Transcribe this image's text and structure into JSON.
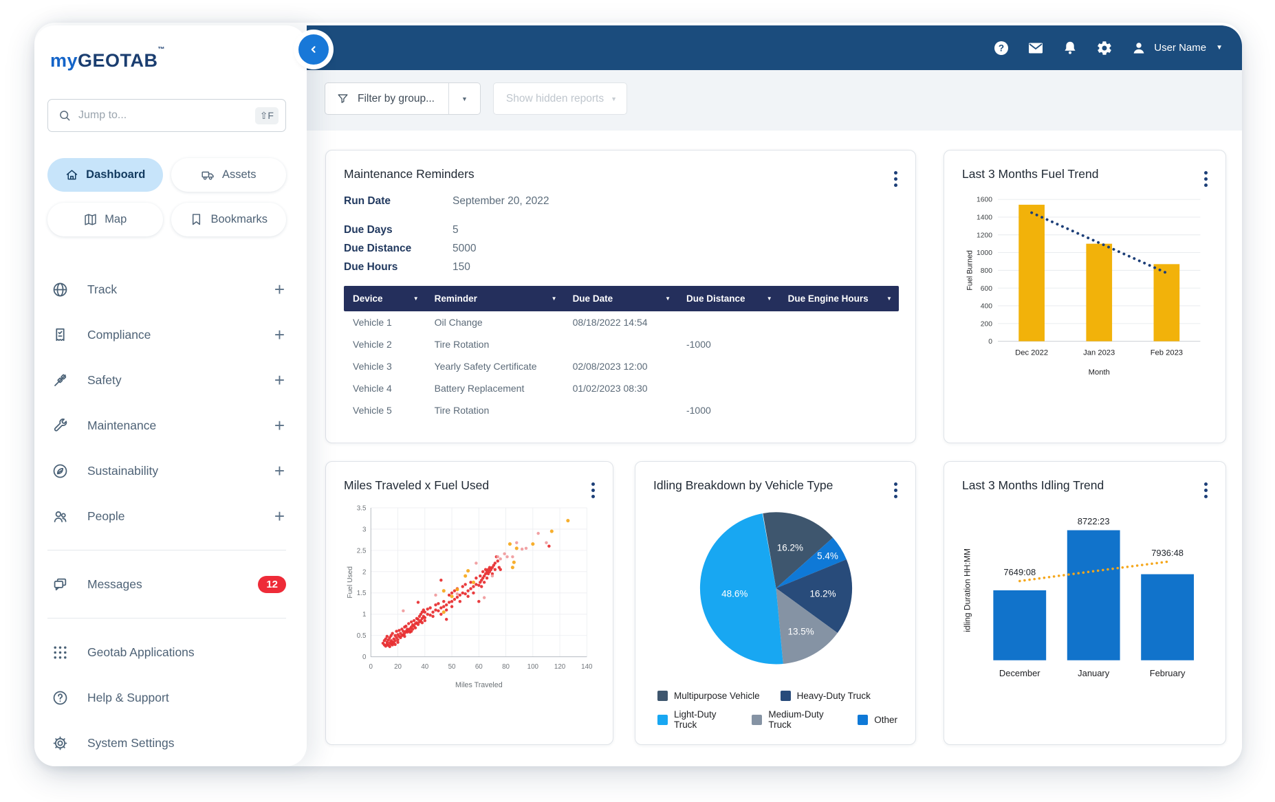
{
  "sidebar": {
    "logo": {
      "brand_prefix": "my",
      "brand_suffix": "GEOTAB",
      "tm": "™"
    },
    "search": {
      "placeholder": "Jump to...",
      "shortcut": "⇧F"
    },
    "quick_nav": [
      {
        "label": "Dashboard",
        "icon": "home-icon",
        "active": true
      },
      {
        "label": "Assets",
        "icon": "truck-icon",
        "active": false
      },
      {
        "label": "Map",
        "icon": "map-icon",
        "active": false
      },
      {
        "label": "Bookmarks",
        "icon": "bookmark-icon",
        "active": false
      }
    ],
    "menu": [
      {
        "label": "Track",
        "icon": "globe-icon"
      },
      {
        "label": "Compliance",
        "icon": "checklist-icon"
      },
      {
        "label": "Safety",
        "icon": "seatbelt-icon"
      },
      {
        "label": "Maintenance",
        "icon": "wrench-icon"
      },
      {
        "label": "Sustainability",
        "icon": "leaf-icon"
      },
      {
        "label": "People",
        "icon": "people-icon"
      }
    ],
    "messages": {
      "label": "Messages",
      "icon": "chat-icon",
      "badge": "12"
    },
    "footer": [
      {
        "label": "Geotab Applications",
        "icon": "apps-grid-icon"
      },
      {
        "label": "Help & Support",
        "icon": "help-circle-icon"
      },
      {
        "label": "System Settings",
        "icon": "gear-outline-icon"
      }
    ]
  },
  "topbar": {
    "user_name": "User Name"
  },
  "filters": {
    "group_label": "Filter by group...",
    "hidden_label": "Show hidden reports"
  },
  "maintenance": {
    "title": "Maintenance Reminders",
    "run_date_label": "Run Date",
    "run_date_value": "September 20, 2022",
    "stats": [
      {
        "label": "Due Days",
        "value": "5"
      },
      {
        "label": "Due Distance",
        "value": "5000"
      },
      {
        "label": "Due Hours",
        "value": "150"
      }
    ],
    "table": {
      "columns": [
        "Device",
        "Reminder",
        "Due Date",
        "Due Distance",
        "Due Engine Hours"
      ],
      "rows": [
        [
          "Vehicle 1",
          "Oil Change",
          "08/18/2022 14:54",
          "",
          ""
        ],
        [
          "Vehicle 2",
          "Tire Rotation",
          "",
          "-1000",
          ""
        ],
        [
          "Vehicle 3",
          "Yearly Safety Certificate",
          "02/08/2023 12:00",
          "",
          ""
        ],
        [
          "Vehicle 4",
          "Battery Replacement",
          "01/02/2023 08:30",
          "",
          ""
        ],
        [
          "Vehicle 5",
          "Tire Rotation",
          "",
          "-1000",
          ""
        ]
      ]
    }
  },
  "chart_data": [
    {
      "id": "fuel-trend",
      "type": "bar",
      "title": "Last 3 Months Fuel Trend",
      "categories": [
        "Dec 2022",
        "Jan 2023",
        "Feb 2023"
      ],
      "values": [
        1540,
        1100,
        870
      ],
      "trendline": [
        1450,
        1110,
        770
      ],
      "xlabel": "Month",
      "ylabel": "Fuel Burned",
      "ylim": [
        0,
        1600
      ],
      "yticks": [
        0,
        200,
        400,
        600,
        800,
        1000,
        1200,
        1400,
        1600
      ],
      "grid": true,
      "bar_color": "#f2b20a",
      "trend_color": "#1d3f78"
    },
    {
      "id": "miles-fuel",
      "type": "scatter",
      "title": "Miles Traveled x Fuel Used",
      "xlabel": "Miles Traveled",
      "ylabel": "Fuel Used",
      "xlim": [
        0,
        140
      ],
      "ylim": [
        0,
        3.5
      ],
      "xticks": [
        0,
        20,
        40,
        50,
        60,
        80,
        100,
        120,
        140
      ],
      "yticks": [
        0,
        0.5,
        1,
        1.5,
        2,
        2.5,
        3,
        3.5
      ],
      "grid": true,
      "series": [
        {
          "name": "primary",
          "color": "#e72b2e",
          "point_radius": 2.6,
          "points": [
            [
              9,
              0.32
            ],
            [
              10,
              0.28
            ],
            [
              10,
              0.38
            ],
            [
              11,
              0.25
            ],
            [
              11,
              0.42
            ],
            [
              12,
              0.3
            ],
            [
              12,
              0.35
            ],
            [
              12,
              0.48
            ],
            [
              13,
              0.27
            ],
            [
              13,
              0.4
            ],
            [
              14,
              0.33
            ],
            [
              14,
              0.45
            ],
            [
              14,
              0.24
            ],
            [
              15,
              0.3
            ],
            [
              15,
              0.5
            ],
            [
              15,
              0.38
            ],
            [
              16,
              0.35
            ],
            [
              16,
              0.28
            ],
            [
              16,
              0.55
            ],
            [
              17,
              0.42
            ],
            [
              17,
              0.33
            ],
            [
              18,
              0.38
            ],
            [
              18,
              0.5
            ],
            [
              18,
              0.29
            ],
            [
              19,
              0.45
            ],
            [
              19,
              0.6
            ],
            [
              20,
              0.4
            ],
            [
              20,
              0.52
            ],
            [
              20,
              0.34
            ],
            [
              21,
              0.48
            ],
            [
              21,
              0.62
            ],
            [
              22,
              0.45
            ],
            [
              22,
              0.55
            ],
            [
              23,
              0.5
            ],
            [
              23,
              0.65
            ],
            [
              24,
              0.52
            ],
            [
              24,
              0.6
            ],
            [
              25,
              0.55
            ],
            [
              25,
              0.7
            ],
            [
              25,
              0.48
            ],
            [
              26,
              0.6
            ],
            [
              26,
              0.72
            ],
            [
              27,
              0.58
            ],
            [
              27,
              0.65
            ],
            [
              28,
              0.62
            ],
            [
              28,
              0.78
            ],
            [
              29,
              0.66
            ],
            [
              29,
              0.58
            ],
            [
              30,
              0.7
            ],
            [
              30,
              0.82
            ],
            [
              30,
              0.6
            ],
            [
              31,
              0.75
            ],
            [
              31,
              0.65
            ],
            [
              32,
              0.72
            ],
            [
              32,
              0.85
            ],
            [
              33,
              0.78
            ],
            [
              33,
              0.68
            ],
            [
              34,
              0.8
            ],
            [
              34,
              0.9
            ],
            [
              35,
              0.76
            ],
            [
              35,
              0.88
            ],
            [
              35,
              1.28
            ],
            [
              36,
              0.82
            ],
            [
              36,
              0.95
            ],
            [
              37,
              0.85
            ],
            [
              37,
              1.0
            ],
            [
              38,
              0.9
            ],
            [
              38,
              1.05
            ],
            [
              38,
              0.8
            ],
            [
              39,
              0.95
            ],
            [
              39,
              1.1
            ],
            [
              40,
              0.92
            ],
            [
              40,
              1.05
            ],
            [
              40,
              0.85
            ],
            [
              41,
              1.0
            ],
            [
              41,
              1.12
            ],
            [
              42,
              0.98
            ],
            [
              42,
              1.15
            ],
            [
              43,
              1.05
            ],
            [
              43,
              0.95
            ],
            [
              44,
              1.1
            ],
            [
              44,
              1.22
            ],
            [
              45,
              1.08
            ],
            [
              45,
              1.25
            ],
            [
              46,
              1.15
            ],
            [
              46,
              1.0
            ],
            [
              46,
              1.8
            ],
            [
              47,
              1.18
            ],
            [
              47,
              1.3
            ],
            [
              48,
              1.22
            ],
            [
              48,
              1.1
            ],
            [
              48,
              0.88
            ],
            [
              49,
              1.28
            ],
            [
              49,
              1.45
            ],
            [
              50,
              1.3
            ],
            [
              50,
              1.5
            ],
            [
              50,
              1.18
            ],
            [
              51,
              1.35
            ],
            [
              51,
              1.55
            ],
            [
              52,
              1.4
            ],
            [
              52,
              1.6
            ],
            [
              53,
              1.45
            ],
            [
              53,
              1.3
            ],
            [
              54,
              1.5
            ],
            [
              54,
              1.65
            ],
            [
              55,
              1.48
            ],
            [
              55,
              1.7
            ],
            [
              56,
              1.55
            ],
            [
              56,
              1.42
            ],
            [
              57,
              1.6
            ],
            [
              57,
              1.75
            ],
            [
              58,
              1.65
            ],
            [
              58,
              1.5
            ],
            [
              59,
              1.7
            ],
            [
              59,
              1.85
            ],
            [
              60,
              1.68
            ],
            [
              60,
              1.3
            ],
            [
              61,
              1.75
            ],
            [
              61,
              1.9
            ],
            [
              62,
              1.8
            ],
            [
              62,
              1.65
            ],
            [
              63,
              1.85
            ],
            [
              63,
              2.0
            ],
            [
              64,
              1.9
            ],
            [
              64,
              1.75
            ],
            [
              65,
              1.95
            ],
            [
              65,
              2.05
            ],
            [
              66,
              2.0
            ],
            [
              66,
              1.85
            ],
            [
              67,
              2.05
            ],
            [
              67,
              1.95
            ],
            [
              68,
              2.0
            ],
            [
              68,
              2.1
            ],
            [
              69,
              2.05
            ],
            [
              70,
              2.1
            ],
            [
              70,
              1.95
            ],
            [
              71,
              2.15
            ],
            [
              72,
              2.2
            ],
            [
              72,
              2.05
            ],
            [
              73,
              2.35
            ],
            [
              74,
              2.25
            ],
            [
              75,
              2.1
            ],
            [
              76,
              2.05
            ],
            [
              112,
              2.6
            ]
          ]
        },
        {
          "name": "secondary",
          "color": "#f09a9c",
          "point_radius": 2.6,
          "points": [
            [
              24,
              1.08
            ],
            [
              44,
              1.45
            ],
            [
              52,
              1.48
            ],
            [
              59,
              2.2
            ],
            [
              64,
              1.39
            ],
            [
              70,
              1.9
            ],
            [
              74,
              2.35
            ],
            [
              76,
              2.3
            ],
            [
              79,
              2.42
            ],
            [
              81,
              2.35
            ],
            [
              85,
              2.35
            ],
            [
              88,
              2.68
            ],
            [
              92,
              2.53
            ],
            [
              95,
              2.55
            ],
            [
              104,
              2.9
            ],
            [
              110,
              2.68
            ]
          ]
        },
        {
          "name": "highlight",
          "color": "#f6a81c",
          "point_radius": 3,
          "points": [
            [
              47,
              1.05
            ],
            [
              47,
              1.55
            ],
            [
              50,
              1.42
            ],
            [
              52,
              1.58
            ],
            [
              55,
              1.9
            ],
            [
              56,
              2.02
            ],
            [
              58,
              1.75
            ],
            [
              83,
              2.65
            ],
            [
              85,
              2.1
            ],
            [
              86,
              2.22
            ],
            [
              88,
              2.55
            ],
            [
              100,
              2.65
            ],
            [
              114,
              2.95
            ],
            [
              126,
              3.2
            ]
          ]
        }
      ]
    },
    {
      "id": "idling-breakdown",
      "type": "pie",
      "title": "Idling Breakdown by Vehicle Type",
      "start_angle": -10,
      "slices": [
        {
          "label": "Multipurpose Vehicle",
          "value": 16.2,
          "pct_label": "16.2%",
          "color": "#3e566e",
          "label_r": 0.56
        },
        {
          "label": "Other",
          "value": 5.4,
          "pct_label": "5.4%",
          "color": "#0f79d7",
          "label_r": 0.8
        },
        {
          "label": "Heavy-Duty Truck",
          "value": 16.2,
          "pct_label": "16.2%",
          "color": "#284b7a",
          "label_r": 0.62
        },
        {
          "label": "Medium-Duty Truck",
          "value": 13.5,
          "pct_label": "13.5%",
          "color": "#8593a4",
          "label_r": 0.66
        },
        {
          "label": "Light-Duty Truck",
          "value": 48.6,
          "pct_label": "48.6%",
          "color": "#18a7f2",
          "label_r": 0.55
        }
      ],
      "legend_rows": [
        [
          "Multipurpose Vehicle",
          "Heavy-Duty Truck"
        ],
        [
          "Light-Duty Truck",
          "Medium-Duty Truck",
          "Other"
        ]
      ]
    },
    {
      "id": "idling-trend",
      "type": "bar",
      "title": "Last 3 Months Idling Trend",
      "categories": [
        "December",
        "January",
        "February"
      ],
      "values": [
        7649.13,
        8722.38,
        7936.8
      ],
      "value_labels": [
        "7649:08",
        "8722:23",
        "7936:48"
      ],
      "trendline": [
        7815,
        7990,
        8160
      ],
      "ylabel": "idling Duration HH:MM",
      "ybase": 6400,
      "ytop": 8900,
      "grid": false,
      "bar_color": "#1173cb",
      "trend_color": "#f5a71c"
    }
  ]
}
